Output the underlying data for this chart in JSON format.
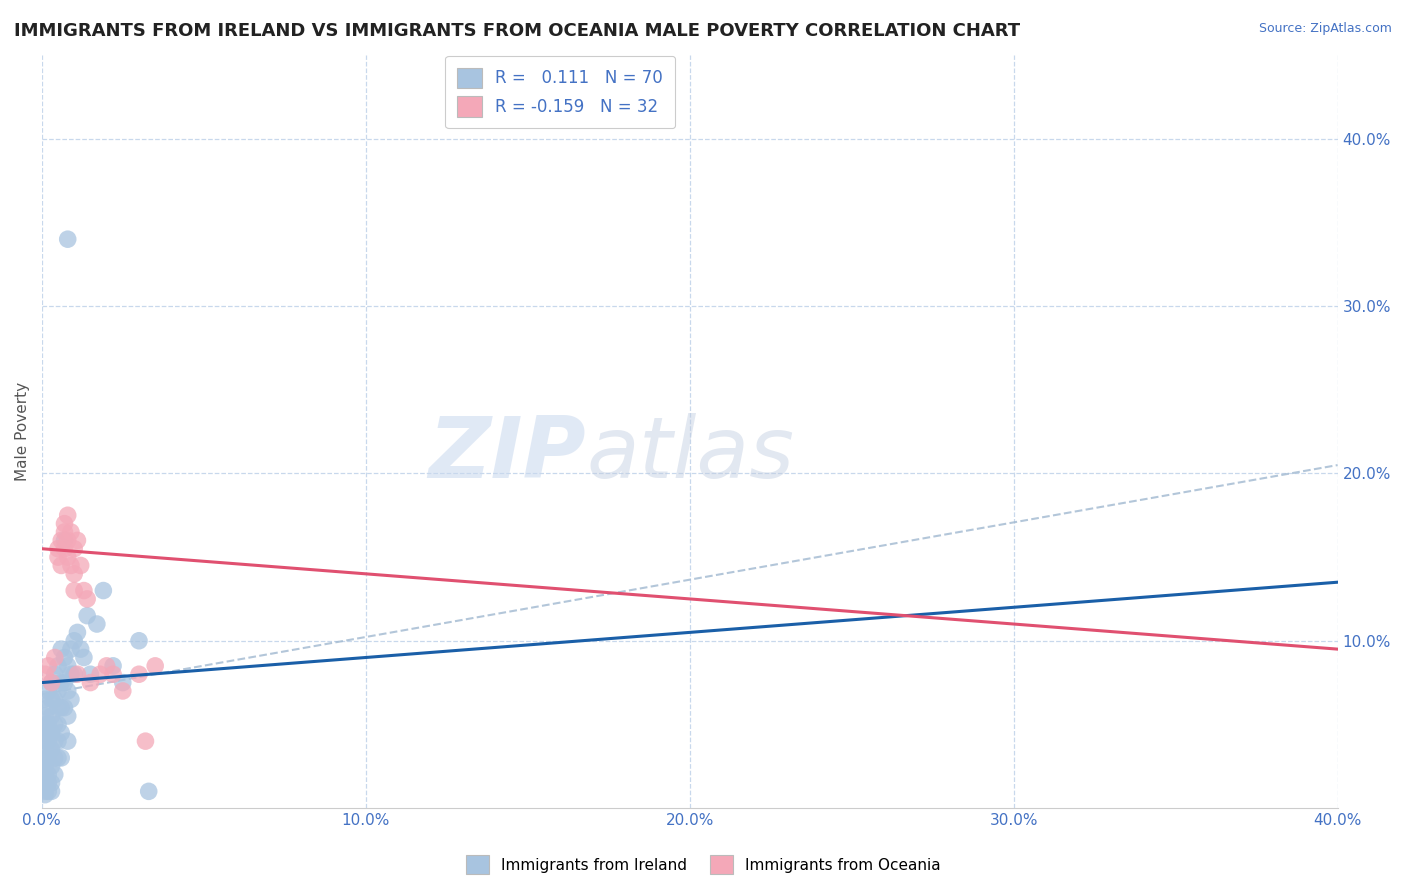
{
  "title": "IMMIGRANTS FROM IRELAND VS IMMIGRANTS FROM OCEANIA MALE POVERTY CORRELATION CHART",
  "source": "Source: ZipAtlas.com",
  "ylabel": "Male Poverty",
  "xlim": [
    0.0,
    0.4
  ],
  "ylim": [
    0.0,
    0.45
  ],
  "ireland_color": "#a8c4e0",
  "oceania_color": "#f4a8b8",
  "ireland_R": 0.111,
  "ireland_N": 70,
  "oceania_R": -0.159,
  "oceania_N": 32,
  "ireland_line_color": "#1a5fa8",
  "oceania_line_color": "#e05070",
  "dashed_line_color": "#a0b8d0",
  "ireland_scatter": [
    [
      0.001,
      0.065
    ],
    [
      0.001,
      0.055
    ],
    [
      0.001,
      0.05
    ],
    [
      0.001,
      0.045
    ],
    [
      0.001,
      0.04
    ],
    [
      0.001,
      0.035
    ],
    [
      0.001,
      0.03
    ],
    [
      0.001,
      0.025
    ],
    [
      0.001,
      0.02
    ],
    [
      0.001,
      0.015
    ],
    [
      0.001,
      0.01
    ],
    [
      0.001,
      0.008
    ],
    [
      0.002,
      0.07
    ],
    [
      0.002,
      0.06
    ],
    [
      0.002,
      0.05
    ],
    [
      0.002,
      0.04
    ],
    [
      0.002,
      0.03
    ],
    [
      0.002,
      0.02
    ],
    [
      0.002,
      0.015
    ],
    [
      0.002,
      0.01
    ],
    [
      0.003,
      0.075
    ],
    [
      0.003,
      0.065
    ],
    [
      0.003,
      0.055
    ],
    [
      0.003,
      0.045
    ],
    [
      0.003,
      0.035
    ],
    [
      0.003,
      0.025
    ],
    [
      0.003,
      0.015
    ],
    [
      0.003,
      0.01
    ],
    [
      0.004,
      0.08
    ],
    [
      0.004,
      0.065
    ],
    [
      0.004,
      0.05
    ],
    [
      0.004,
      0.04
    ],
    [
      0.004,
      0.03
    ],
    [
      0.004,
      0.02
    ],
    [
      0.005,
      0.085
    ],
    [
      0.005,
      0.07
    ],
    [
      0.005,
      0.06
    ],
    [
      0.005,
      0.05
    ],
    [
      0.005,
      0.04
    ],
    [
      0.005,
      0.03
    ],
    [
      0.006,
      0.095
    ],
    [
      0.006,
      0.075
    ],
    [
      0.006,
      0.06
    ],
    [
      0.006,
      0.045
    ],
    [
      0.006,
      0.03
    ],
    [
      0.007,
      0.09
    ],
    [
      0.007,
      0.075
    ],
    [
      0.007,
      0.06
    ],
    [
      0.007,
      0.16
    ],
    [
      0.008,
      0.085
    ],
    [
      0.008,
      0.07
    ],
    [
      0.008,
      0.055
    ],
    [
      0.008,
      0.04
    ],
    [
      0.009,
      0.095
    ],
    [
      0.009,
      0.08
    ],
    [
      0.009,
      0.065
    ],
    [
      0.01,
      0.1
    ],
    [
      0.01,
      0.08
    ],
    [
      0.011,
      0.105
    ],
    [
      0.012,
      0.095
    ],
    [
      0.013,
      0.09
    ],
    [
      0.014,
      0.115
    ],
    [
      0.015,
      0.08
    ],
    [
      0.017,
      0.11
    ],
    [
      0.019,
      0.13
    ],
    [
      0.022,
      0.085
    ],
    [
      0.025,
      0.075
    ],
    [
      0.03,
      0.1
    ],
    [
      0.033,
      0.01
    ],
    [
      0.008,
      0.34
    ]
  ],
  "oceania_scatter": [
    [
      0.001,
      0.08
    ],
    [
      0.002,
      0.085
    ],
    [
      0.003,
      0.075
    ],
    [
      0.004,
      0.09
    ],
    [
      0.005,
      0.155
    ],
    [
      0.005,
      0.15
    ],
    [
      0.006,
      0.16
    ],
    [
      0.006,
      0.145
    ],
    [
      0.007,
      0.17
    ],
    [
      0.007,
      0.165
    ],
    [
      0.007,
      0.155
    ],
    [
      0.008,
      0.175
    ],
    [
      0.008,
      0.16
    ],
    [
      0.008,
      0.15
    ],
    [
      0.009,
      0.165
    ],
    [
      0.009,
      0.145
    ],
    [
      0.01,
      0.155
    ],
    [
      0.01,
      0.14
    ],
    [
      0.01,
      0.13
    ],
    [
      0.011,
      0.16
    ],
    [
      0.011,
      0.08
    ],
    [
      0.012,
      0.145
    ],
    [
      0.013,
      0.13
    ],
    [
      0.014,
      0.125
    ],
    [
      0.015,
      0.075
    ],
    [
      0.018,
      0.08
    ],
    [
      0.02,
      0.085
    ],
    [
      0.022,
      0.08
    ],
    [
      0.025,
      0.07
    ],
    [
      0.03,
      0.08
    ],
    [
      0.032,
      0.04
    ],
    [
      0.035,
      0.085
    ]
  ],
  "watermark_zip": "ZIP",
  "watermark_atlas": "atlas",
  "background_color": "#ffffff",
  "grid_color": "#c8d8ec"
}
